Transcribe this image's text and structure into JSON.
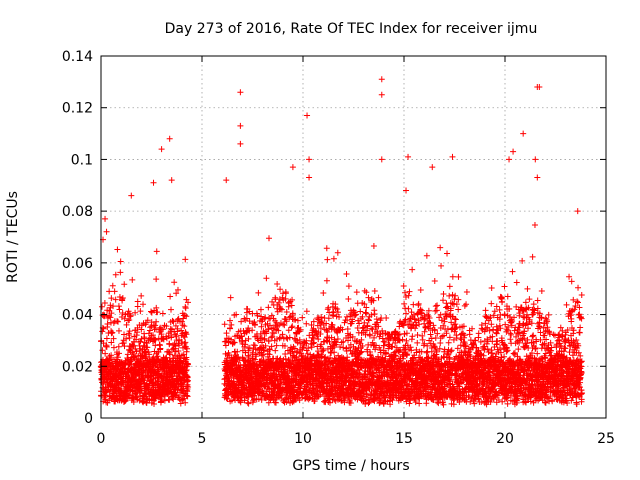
{
  "chart_data": {
    "type": "scatter",
    "title": "Day 273 of 2016, Rate Of TEC Index for receiver ijmu",
    "xlabel": "GPS time / hours",
    "ylabel": "ROTI / TECUs",
    "xlim": [
      0,
      25
    ],
    "ylim": [
      0,
      0.14
    ],
    "x_ticks": [
      "0",
      "5",
      "10",
      "15",
      "20",
      "25"
    ],
    "y_ticks": [
      "0",
      "0.02",
      "0.04",
      "0.06",
      "0.08",
      "0.1",
      "0.12",
      "0.14"
    ],
    "grid": true,
    "marker": "+",
    "color": "#ff0000",
    "data_gap_hours": [
      4.3,
      6.1
    ],
    "series": [
      {
        "name": "ROTI",
        "baseline_range": [
          0.005,
          0.02
        ],
        "notable_points": [
          {
            "x": 0.2,
            "y": 0.077
          },
          {
            "x": 0.1,
            "y": 0.069
          },
          {
            "x": 1.5,
            "y": 0.086
          },
          {
            "x": 2.6,
            "y": 0.091
          },
          {
            "x": 3.0,
            "y": 0.104
          },
          {
            "x": 3.4,
            "y": 0.108
          },
          {
            "x": 3.5,
            "y": 0.092
          },
          {
            "x": 6.2,
            "y": 0.092
          },
          {
            "x": 6.9,
            "y": 0.126
          },
          {
            "x": 6.9,
            "y": 0.113
          },
          {
            "x": 6.9,
            "y": 0.106
          },
          {
            "x": 9.5,
            "y": 0.097
          },
          {
            "x": 10.2,
            "y": 0.117
          },
          {
            "x": 10.3,
            "y": 0.1
          },
          {
            "x": 10.3,
            "y": 0.093
          },
          {
            "x": 13.9,
            "y": 0.131
          },
          {
            "x": 13.9,
            "y": 0.125
          },
          {
            "x": 13.9,
            "y": 0.1
          },
          {
            "x": 15.2,
            "y": 0.101
          },
          {
            "x": 15.1,
            "y": 0.088
          },
          {
            "x": 16.4,
            "y": 0.097
          },
          {
            "x": 17.4,
            "y": 0.101
          },
          {
            "x": 20.2,
            "y": 0.1
          },
          {
            "x": 20.4,
            "y": 0.103
          },
          {
            "x": 20.9,
            "y": 0.11
          },
          {
            "x": 21.5,
            "y": 0.1
          },
          {
            "x": 21.6,
            "y": 0.128
          },
          {
            "x": 21.7,
            "y": 0.128
          },
          {
            "x": 21.6,
            "y": 0.093
          },
          {
            "x": 23.6,
            "y": 0.08
          }
        ]
      }
    ]
  }
}
